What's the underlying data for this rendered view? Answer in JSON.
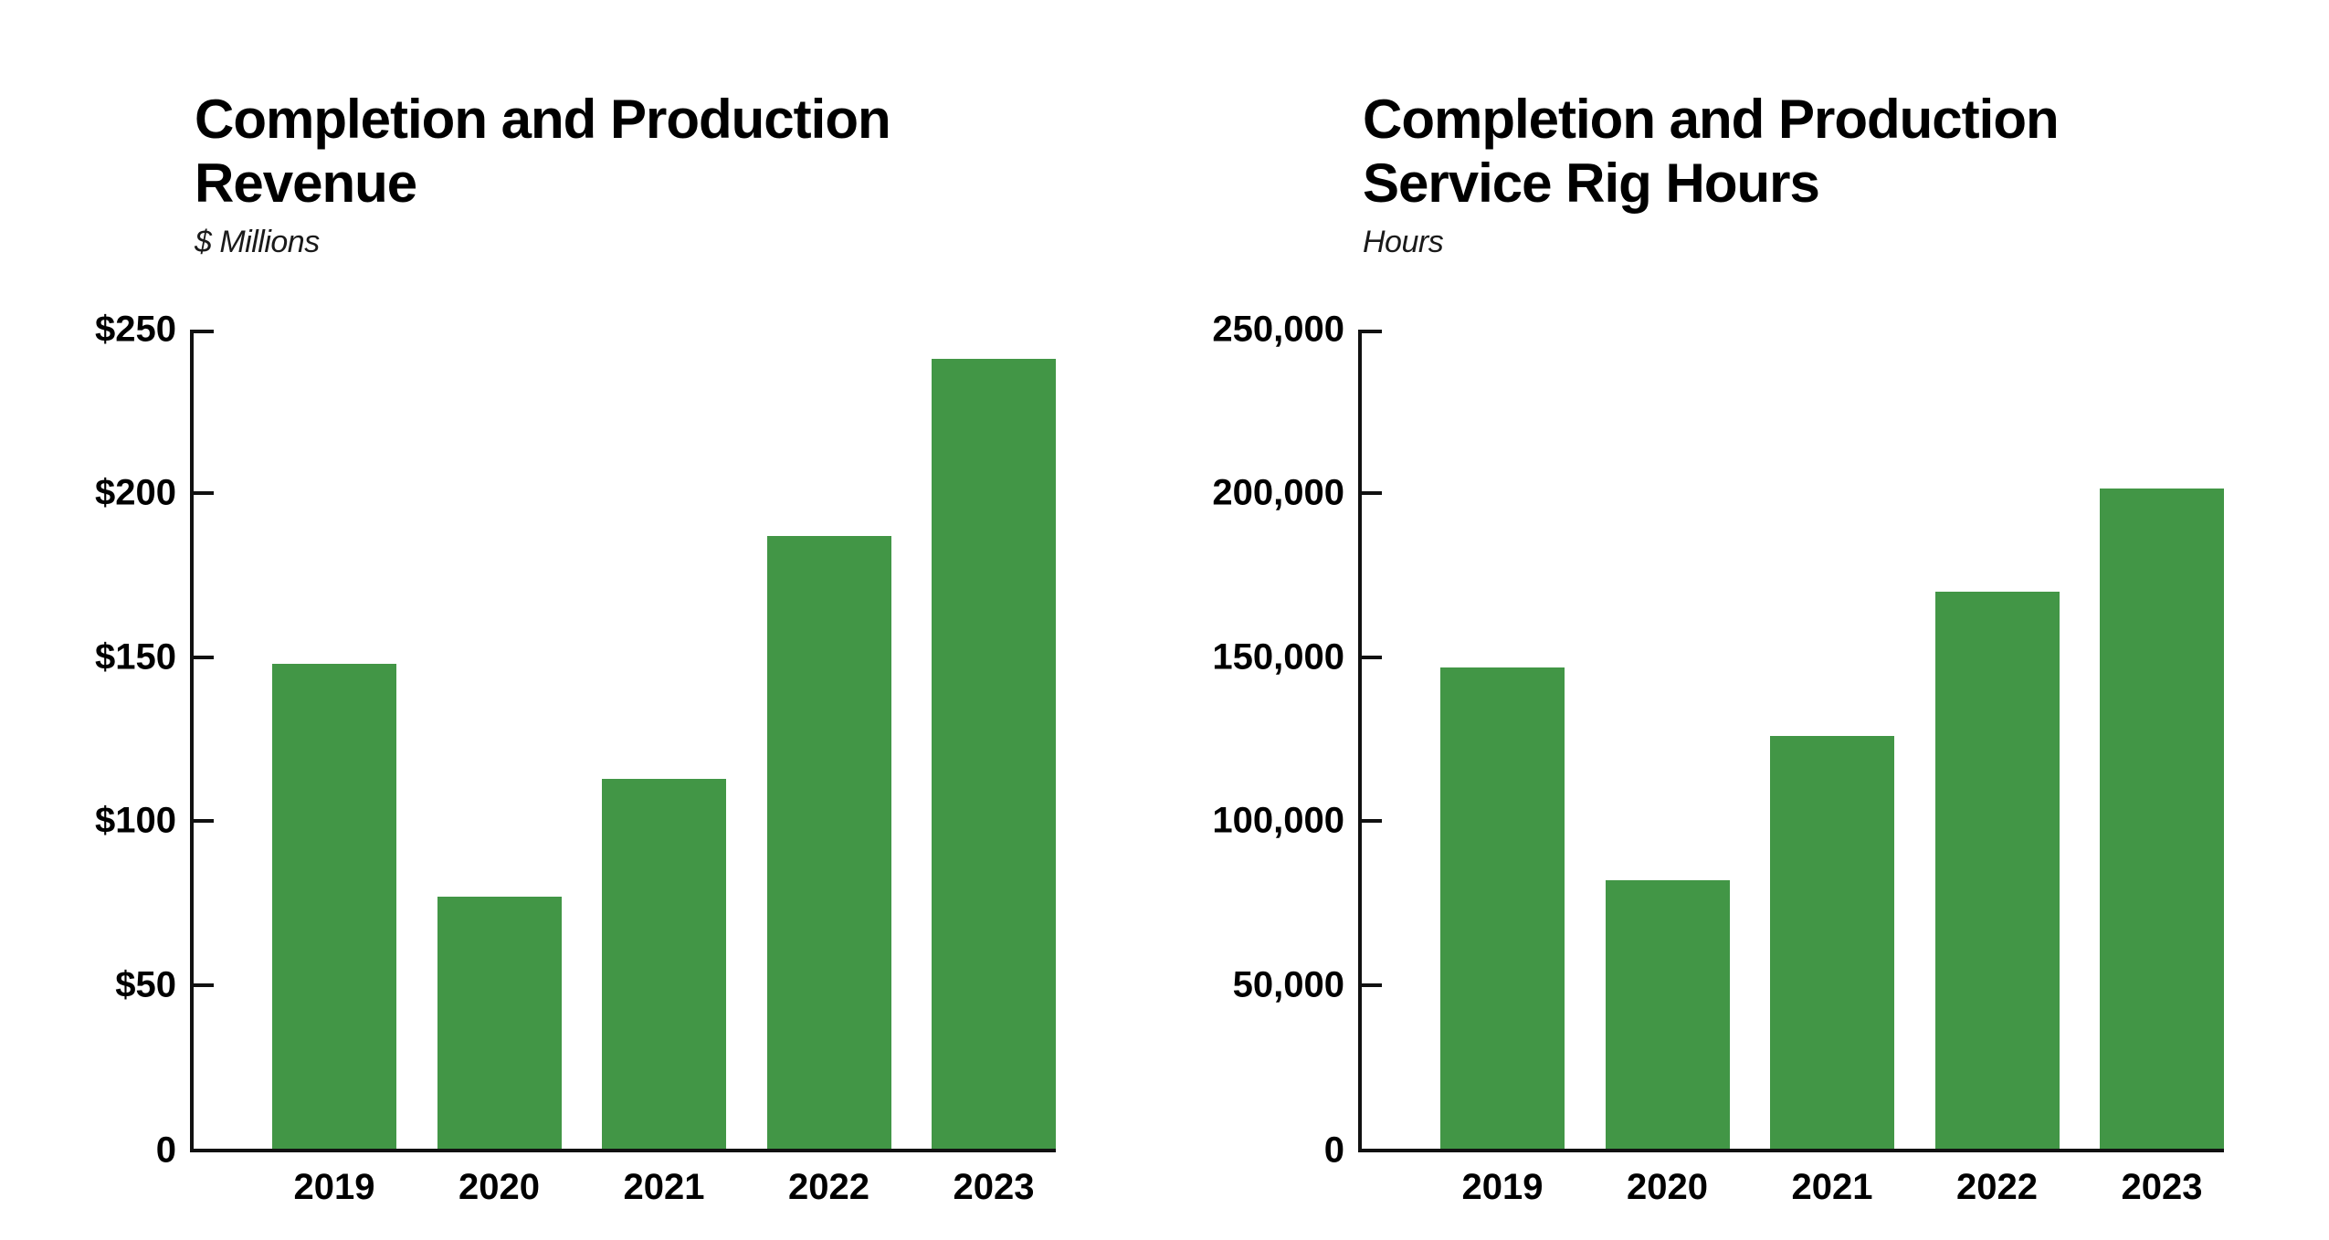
{
  "page": {
    "background": "#ffffff",
    "text_color": "#000000"
  },
  "chart_data": [
    {
      "type": "bar",
      "title": "Completion and Production Revenue",
      "title_lines": [
        "Completion and Production",
        "Revenue"
      ],
      "subtitle": "$ Millions",
      "categories": [
        "2019",
        "2020",
        "2021",
        "2022",
        "2023"
      ],
      "values": [
        148,
        77,
        113,
        187,
        241
      ],
      "ylim": [
        0,
        250
      ],
      "yticks": [
        {
          "label": "$250",
          "value": 250
        },
        {
          "label": "$200",
          "value": 200
        },
        {
          "label": "$150",
          "value": 150
        },
        {
          "label": "$100",
          "value": 100
        },
        {
          "label": "$50",
          "value": 50
        },
        {
          "label": "0",
          "value": 0
        }
      ],
      "bar_color": "#429646",
      "axis_color": "#111111",
      "grid": "off",
      "legend": "none"
    },
    {
      "type": "bar",
      "title": "Completion and Production Service Rig Hours",
      "title_lines": [
        "Completion and Production",
        "Service Rig Hours"
      ],
      "subtitle": "Hours",
      "categories": [
        "2019",
        "2020",
        "2021",
        "2022",
        "2023"
      ],
      "values": [
        147000,
        82000,
        126000,
        170000,
        201500
      ],
      "ylim": [
        0,
        250000
      ],
      "yticks": [
        {
          "label": "250,000",
          "value": 250000
        },
        {
          "label": "200,000",
          "value": 200000
        },
        {
          "label": "150,000",
          "value": 150000
        },
        {
          "label": "100,000",
          "value": 100000
        },
        {
          "label": "50,000",
          "value": 50000
        },
        {
          "label": "0",
          "value": 0
        }
      ],
      "bar_color": "#429646",
      "axis_color": "#111111",
      "grid": "off",
      "legend": "none"
    }
  ]
}
